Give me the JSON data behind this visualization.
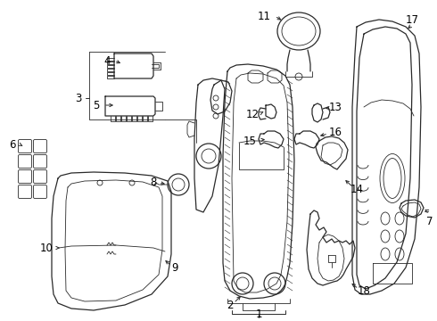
{
  "bg_color": "#ffffff",
  "line_color": "#2a2a2a",
  "label_color": "#000000",
  "font_size": 8.5
}
